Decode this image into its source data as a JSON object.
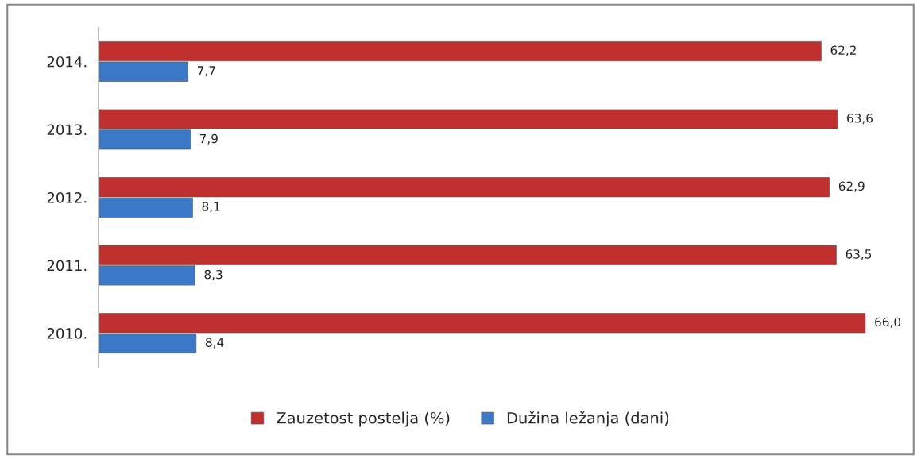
{
  "chart_data": {
    "type": "bar",
    "orientation": "horizontal",
    "categories": [
      "2014.",
      "2013.",
      "2012.",
      "2011.",
      "2010."
    ],
    "series": [
      {
        "name": "Zauzetost postelja (%)",
        "color": "#c0302e",
        "values": [
          62.2,
          63.6,
          62.9,
          63.5,
          66.0
        ],
        "value_labels": [
          "62,2",
          "63,6",
          "62,9",
          "63,5",
          "66,0"
        ]
      },
      {
        "name": "Dužina ležanja (dani)",
        "color": "#3c78c8",
        "values": [
          7.7,
          7.9,
          8.1,
          8.3,
          8.4
        ],
        "value_labels": [
          "7,7",
          "7,9",
          "8,1",
          "8,3",
          "8,4"
        ]
      }
    ],
    "legend": "bottom",
    "grid": false
  }
}
